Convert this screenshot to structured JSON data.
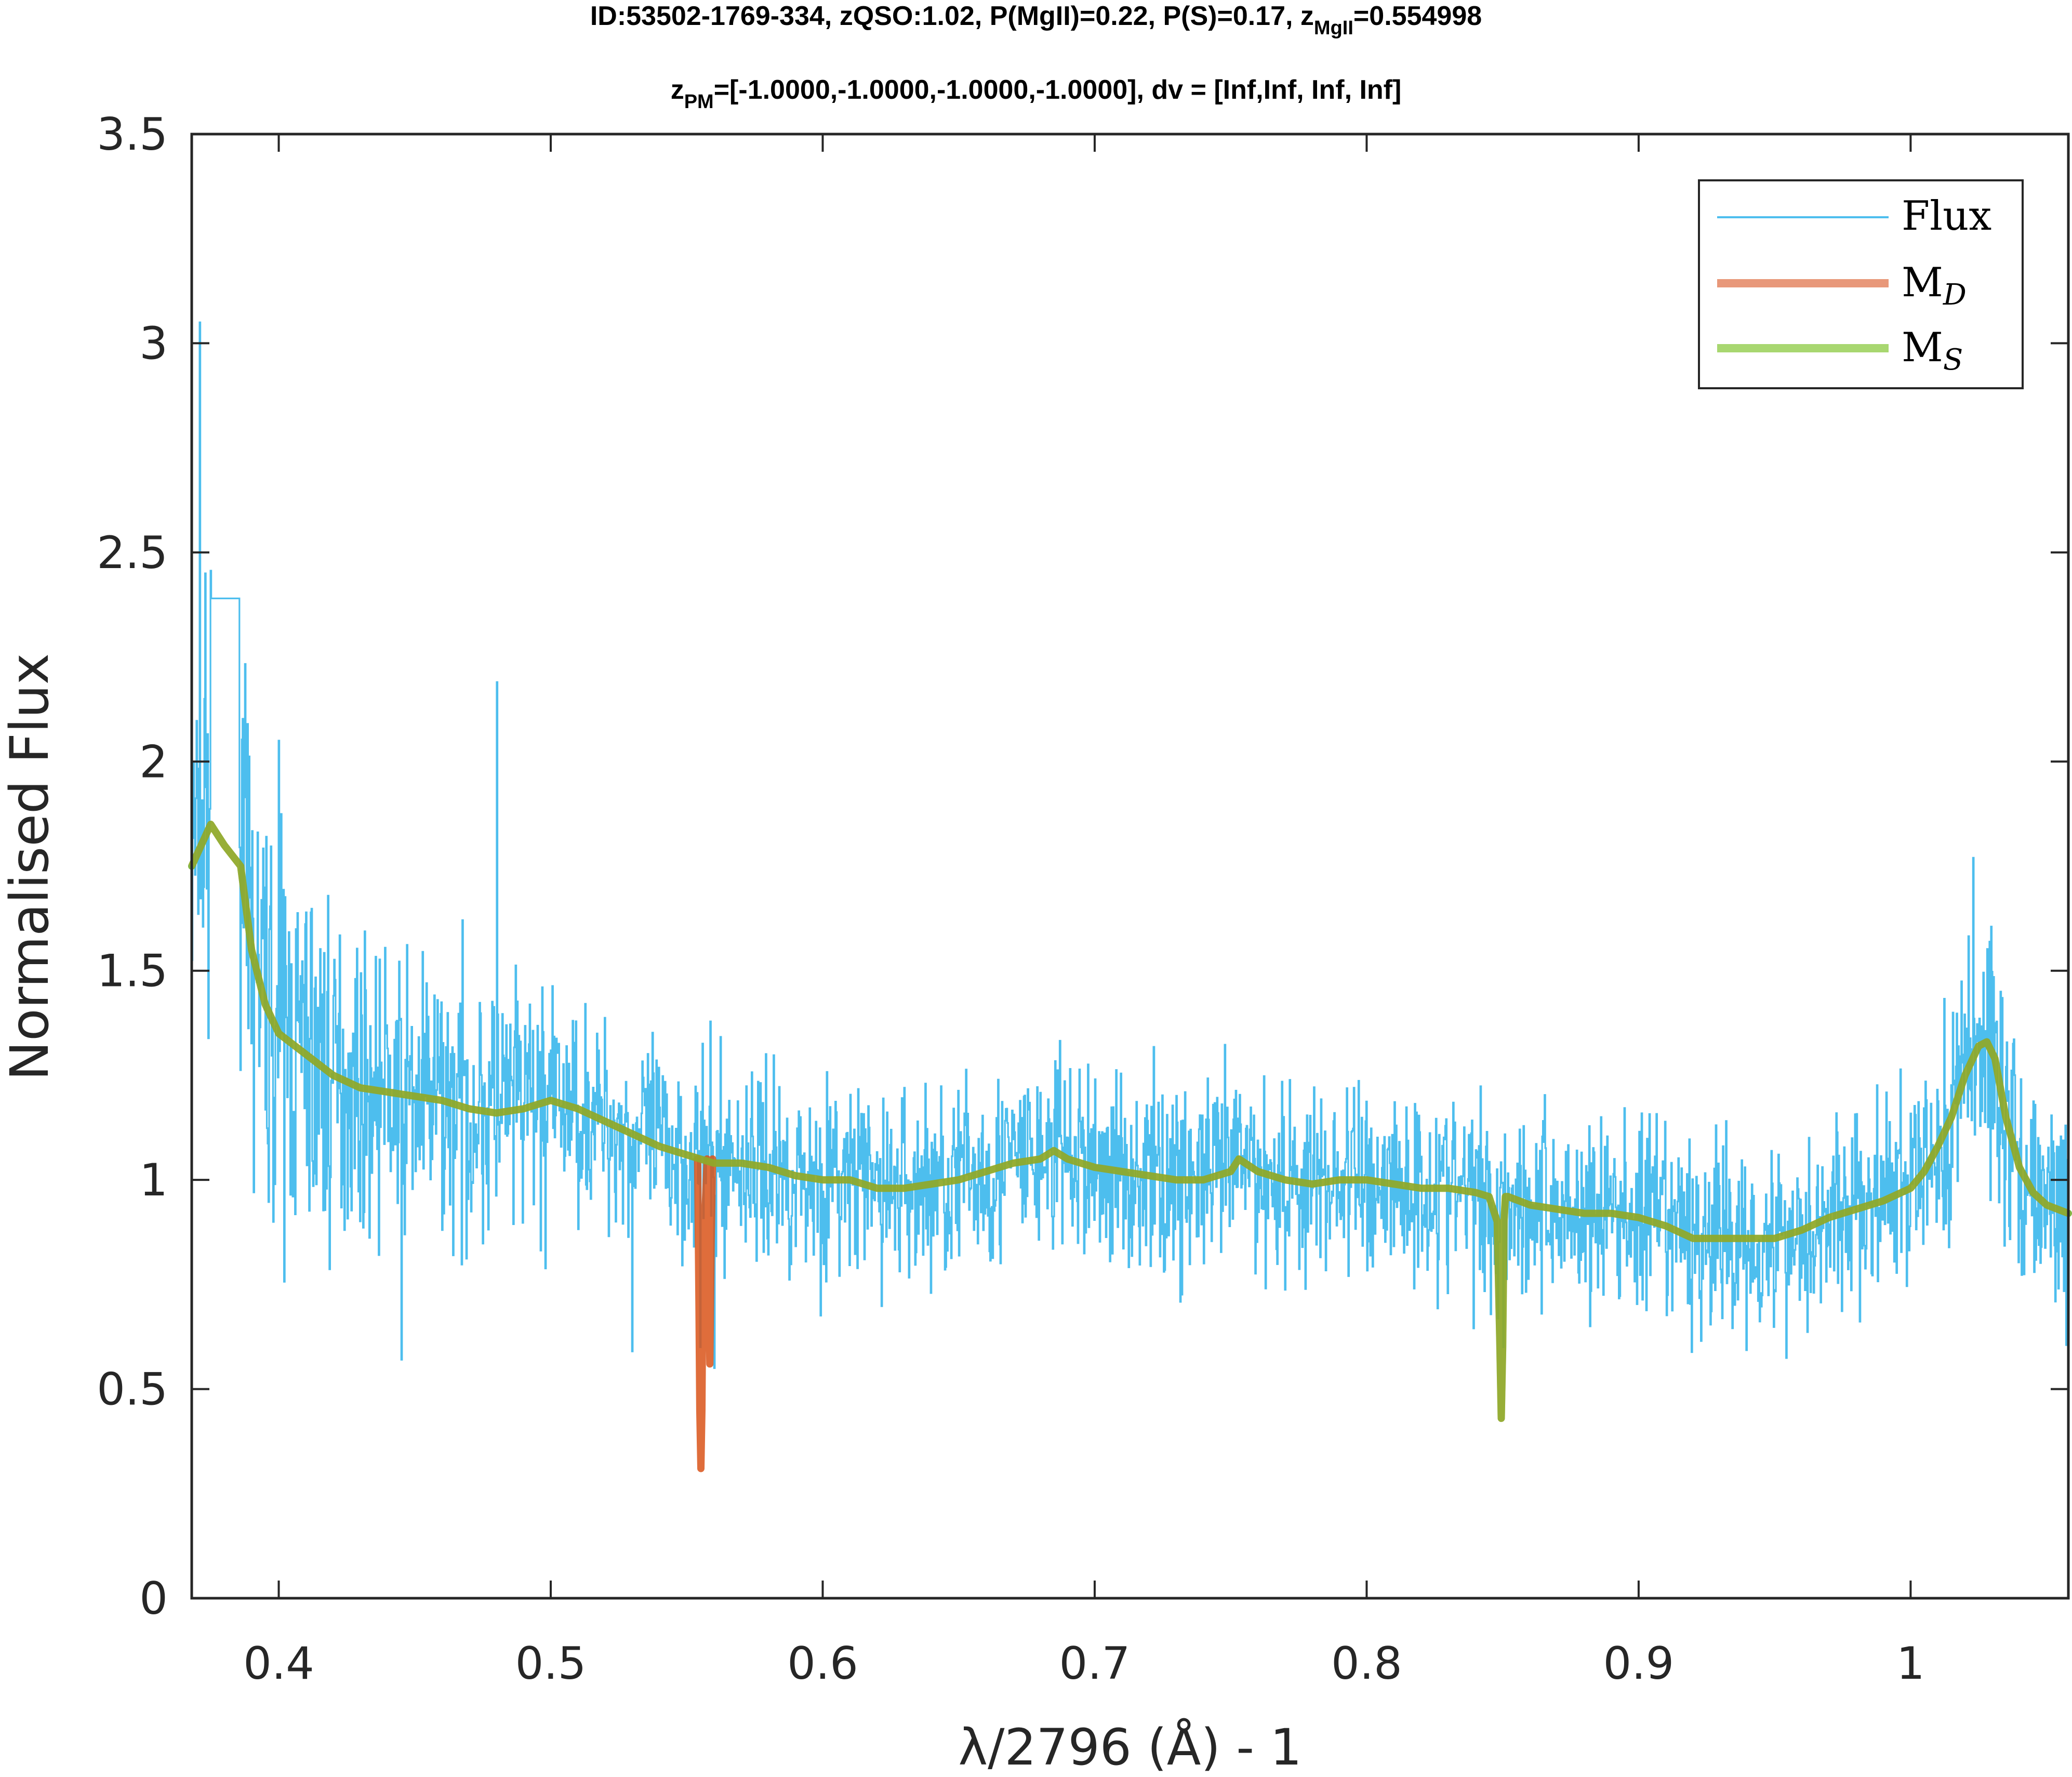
{
  "chart_data": {
    "type": "line",
    "title_line1": "ID:53502-1769-334, zQSO:1.02, P(MgII)=0.22, P(S)=0.17, z",
    "title_line1_sub": "MgII",
    "title_line1_tail": "=0.554998",
    "title_line2_head": "z",
    "title_line2_sub": "PM",
    "title_line2_tail": "=[-1.0000,-1.0000,-1.0000,-1.0000], dv = [Inf,Inf, Inf, Inf]",
    "xlabel": "λ/2796 (Å) - 1",
    "ylabel": "Normalised Flux",
    "xlim": [
      0.368,
      1.058
    ],
    "ylim": [
      0,
      3.5
    ],
    "xticks": [
      0.4,
      0.5,
      0.6,
      0.7,
      0.8,
      0.9,
      1.0
    ],
    "xtick_labels": [
      "0.4",
      "0.5",
      "0.6",
      "0.7",
      "0.8",
      "0.9",
      "1"
    ],
    "yticks": [
      0,
      0.5,
      1.0,
      1.5,
      2.0,
      2.5,
      3.0,
      3.5
    ],
    "ytick_labels": [
      "0",
      "0.5",
      "1",
      "1.5",
      "2",
      "2.5",
      "3",
      "3.5"
    ],
    "grid": false,
    "legend_position": "top-right",
    "colors": {
      "flux": "#4DBEEE",
      "model_d": "#D95319",
      "model_s": "#77AC30",
      "axis": "#262626"
    },
    "series": [
      {
        "name": "Flux",
        "kind": "noisy-spectrum",
        "x_start": 0.368,
        "x_end": 1.058,
        "noise_sigma": 0.12,
        "spikes": [
          [
            0.371,
            3.05
          ],
          [
            0.373,
            2.45
          ],
          [
            0.38,
            2.39
          ],
          [
            0.4,
            2.05
          ],
          [
            0.48,
            2.19
          ],
          [
            0.555,
            0.58
          ],
          [
            1.023,
            1.77
          ]
        ],
        "dips": [
          [
            0.445,
            0.57
          ],
          [
            0.53,
            0.59
          ],
          [
            0.555,
            0.6
          ],
          [
            0.56,
            0.55
          ],
          [
            0.85,
            0.6
          ]
        ]
      },
      {
        "name": "M_D",
        "x": [
          0.554,
          0.5545,
          0.5548,
          0.5552,
          0.5556,
          0.556,
          0.5575,
          0.558,
          0.5585,
          0.559,
          0.5595
        ],
        "y": [
          1.05,
          0.7,
          0.45,
          0.31,
          0.45,
          0.8,
          1.05,
          0.8,
          0.56,
          0.85,
          1.05
        ]
      },
      {
        "name": "M_S",
        "x": [
          0.368,
          0.375,
          0.38,
          0.386,
          0.39,
          0.395,
          0.4,
          0.41,
          0.42,
          0.43,
          0.44,
          0.45,
          0.46,
          0.47,
          0.48,
          0.49,
          0.5,
          0.51,
          0.52,
          0.53,
          0.54,
          0.55,
          0.555,
          0.56,
          0.57,
          0.58,
          0.59,
          0.6,
          0.61,
          0.62,
          0.63,
          0.64,
          0.65,
          0.66,
          0.67,
          0.68,
          0.685,
          0.69,
          0.7,
          0.71,
          0.72,
          0.73,
          0.74,
          0.75,
          0.753,
          0.76,
          0.77,
          0.78,
          0.79,
          0.8,
          0.81,
          0.82,
          0.83,
          0.84,
          0.845,
          0.848,
          0.849,
          0.8495,
          0.85,
          0.8505,
          0.851,
          0.852,
          0.86,
          0.87,
          0.88,
          0.89,
          0.9,
          0.91,
          0.92,
          0.93,
          0.94,
          0.95,
          0.96,
          0.97,
          0.98,
          0.99,
          1.0,
          1.005,
          1.01,
          1.015,
          1.02,
          1.025,
          1.028,
          1.031,
          1.035,
          1.04,
          1.045,
          1.05,
          1.058
        ],
        "y": [
          1.75,
          1.85,
          1.8,
          1.75,
          1.55,
          1.42,
          1.35,
          1.3,
          1.25,
          1.22,
          1.21,
          1.2,
          1.19,
          1.17,
          1.16,
          1.17,
          1.19,
          1.17,
          1.14,
          1.11,
          1.08,
          1.06,
          1.05,
          1.04,
          1.04,
          1.03,
          1.01,
          1.0,
          1.0,
          0.98,
          0.98,
          0.99,
          1.0,
          1.02,
          1.04,
          1.05,
          1.07,
          1.05,
          1.03,
          1.02,
          1.01,
          1.0,
          1.0,
          1.02,
          1.05,
          1.02,
          1.0,
          0.99,
          1.0,
          1.0,
          0.99,
          0.98,
          0.98,
          0.97,
          0.96,
          0.9,
          0.6,
          0.43,
          0.6,
          0.9,
          0.96,
          0.96,
          0.94,
          0.93,
          0.92,
          0.92,
          0.91,
          0.89,
          0.86,
          0.86,
          0.86,
          0.86,
          0.88,
          0.91,
          0.93,
          0.95,
          0.98,
          1.02,
          1.08,
          1.15,
          1.25,
          1.32,
          1.33,
          1.29,
          1.15,
          1.03,
          0.97,
          0.94,
          0.92
        ]
      }
    ]
  }
}
